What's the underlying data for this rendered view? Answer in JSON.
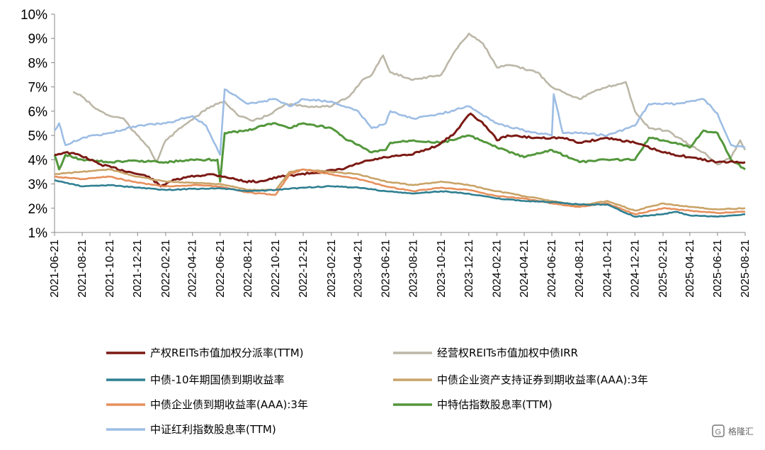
{
  "chart_data": {
    "type": "line",
    "y_unit": "%",
    "ylim": [
      1,
      10
    ],
    "yticks": [
      "10%",
      "9%",
      "8%",
      "7%",
      "6%",
      "5%",
      "4%",
      "3%",
      "2%",
      "1%"
    ],
    "x_range": [
      "2021-06-21",
      "2025-08-21"
    ],
    "xticks": [
      "2021-06-21",
      "2021-08-21",
      "2021-10-21",
      "2021-12-21",
      "2022-02-21",
      "2022-04-21",
      "2022-06-21",
      "2022-08-21",
      "2022-10-21",
      "2022-12-21",
      "2023-02-21",
      "2023-04-21",
      "2023-06-21",
      "2023-08-21",
      "2023-10-21",
      "2023-12-21",
      "2024-02-21",
      "2024-04-21",
      "2024-06-21",
      "2024-08-21",
      "2024-10-21",
      "2024-12-21",
      "2025-02-21",
      "2025-04-21",
      "2025-06-21",
      "2025-08-21"
    ],
    "grid": false,
    "legend_position": "bottom",
    "series": [
      {
        "name": "产权REITs市值加权分派率(TTM)",
        "color": "#7b1a14",
        "points": [
          [
            "2021-06-21",
            4.2
          ],
          [
            "2021-07-15",
            4.3
          ],
          [
            "2021-08-15",
            4.2
          ],
          [
            "2021-10-01",
            3.8
          ],
          [
            "2021-12-01",
            3.5
          ],
          [
            "2022-01-15",
            3.3
          ],
          [
            "2022-02-10",
            2.9
          ],
          [
            "2022-03-01",
            3.1
          ],
          [
            "2022-04-15",
            3.3
          ],
          [
            "2022-06-01",
            3.4
          ],
          [
            "2022-07-01",
            3.3
          ],
          [
            "2022-08-15",
            3.1
          ],
          [
            "2022-09-15",
            3.1
          ],
          [
            "2022-11-01",
            3.3
          ],
          [
            "2022-12-15",
            3.4
          ],
          [
            "2023-02-01",
            3.5
          ],
          [
            "2023-03-15",
            3.6
          ],
          [
            "2023-05-01",
            3.9
          ],
          [
            "2023-06-21",
            4.1
          ],
          [
            "2023-08-15",
            4.2
          ],
          [
            "2023-10-15",
            4.6
          ],
          [
            "2023-11-20",
            5.1
          ],
          [
            "2023-12-10",
            5.6
          ],
          [
            "2023-12-25",
            5.9
          ],
          [
            "2024-01-15",
            5.6
          ],
          [
            "2024-02-10",
            5.1
          ],
          [
            "2024-02-21",
            4.8
          ],
          [
            "2024-03-15",
            5.0
          ],
          [
            "2024-05-15",
            4.9
          ],
          [
            "2024-07-15",
            4.9
          ],
          [
            "2024-08-21",
            4.7
          ],
          [
            "2024-10-21",
            4.9
          ],
          [
            "2024-12-21",
            4.7
          ],
          [
            "2025-02-21",
            4.3
          ],
          [
            "2025-04-21",
            4.1
          ],
          [
            "2025-06-21",
            3.9
          ],
          [
            "2025-08-21",
            3.9
          ]
        ]
      },
      {
        "name": "经营权REITs市值加权中债IRR",
        "color": "#bcb7a7",
        "points": [
          [
            "2021-08-01",
            6.8
          ],
          [
            "2021-08-21",
            6.6
          ],
          [
            "2021-09-20",
            6.1
          ],
          [
            "2021-10-21",
            5.8
          ],
          [
            "2021-11-20",
            5.7
          ],
          [
            "2021-12-10",
            5.2
          ],
          [
            "2022-01-15",
            4.5
          ],
          [
            "2022-02-01",
            3.9
          ],
          [
            "2022-02-21",
            4.8
          ],
          [
            "2022-04-01",
            5.4
          ],
          [
            "2022-05-01",
            5.8
          ],
          [
            "2022-06-01",
            6.2
          ],
          [
            "2022-07-01",
            6.4
          ],
          [
            "2022-08-01",
            5.8
          ],
          [
            "2022-09-01",
            5.6
          ],
          [
            "2022-10-01",
            5.8
          ],
          [
            "2022-11-15",
            6.3
          ],
          [
            "2022-12-21",
            6.2
          ],
          [
            "2023-02-21",
            6.2
          ],
          [
            "2023-04-01",
            6.6
          ],
          [
            "2023-05-01",
            7.3
          ],
          [
            "2023-05-21",
            7.5
          ],
          [
            "2023-06-15",
            8.3
          ],
          [
            "2023-07-01",
            7.6
          ],
          [
            "2023-08-21",
            7.3
          ],
          [
            "2023-10-21",
            7.5
          ],
          [
            "2023-11-21",
            8.5
          ],
          [
            "2023-12-21",
            9.2
          ],
          [
            "2024-01-21",
            8.8
          ],
          [
            "2024-02-21",
            7.8
          ],
          [
            "2024-03-21",
            7.9
          ],
          [
            "2024-05-21",
            7.6
          ],
          [
            "2024-06-21",
            7.0
          ],
          [
            "2024-08-21",
            6.5
          ],
          [
            "2024-09-21",
            6.8
          ],
          [
            "2024-10-21",
            7.0
          ],
          [
            "2024-12-01",
            7.2
          ],
          [
            "2024-12-21",
            6.0
          ],
          [
            "2025-01-21",
            5.3
          ],
          [
            "2025-03-01",
            5.2
          ],
          [
            "2025-04-21",
            4.6
          ],
          [
            "2025-05-21",
            4.3
          ],
          [
            "2025-06-21",
            3.8
          ],
          [
            "2025-07-21",
            4.1
          ],
          [
            "2025-08-10",
            4.8
          ],
          [
            "2025-08-21",
            4.4
          ]
        ]
      },
      {
        "name": "中债-10年期国债到期收益率",
        "color": "#2f7f91",
        "points": [
          [
            "2021-06-21",
            3.15
          ],
          [
            "2021-08-21",
            2.9
          ],
          [
            "2021-10-21",
            2.95
          ],
          [
            "2021-12-21",
            2.85
          ],
          [
            "2022-02-21",
            2.75
          ],
          [
            "2022-04-21",
            2.8
          ],
          [
            "2022-06-21",
            2.82
          ],
          [
            "2022-08-21",
            2.7
          ],
          [
            "2022-10-21",
            2.75
          ],
          [
            "2022-12-21",
            2.85
          ],
          [
            "2023-02-21",
            2.9
          ],
          [
            "2023-04-21",
            2.85
          ],
          [
            "2023-06-21",
            2.7
          ],
          [
            "2023-08-21",
            2.6
          ],
          [
            "2023-10-21",
            2.7
          ],
          [
            "2023-12-21",
            2.6
          ],
          [
            "2024-02-21",
            2.4
          ],
          [
            "2024-04-21",
            2.3
          ],
          [
            "2024-06-21",
            2.25
          ],
          [
            "2024-08-21",
            2.15
          ],
          [
            "2024-10-21",
            2.15
          ],
          [
            "2024-12-21",
            1.65
          ],
          [
            "2025-02-21",
            1.75
          ],
          [
            "2025-03-21",
            1.85
          ],
          [
            "2025-04-21",
            1.7
          ],
          [
            "2025-06-21",
            1.65
          ],
          [
            "2025-08-21",
            1.75
          ]
        ]
      },
      {
        "name": "中债企业资产支持证券到期收益率(AAA):3年",
        "color": "#c9a368",
        "points": [
          [
            "2021-06-21",
            3.4
          ],
          [
            "2021-08-21",
            3.5
          ],
          [
            "2021-10-21",
            3.6
          ],
          [
            "2021-12-21",
            3.3
          ],
          [
            "2022-02-21",
            3.1
          ],
          [
            "2022-04-21",
            3.05
          ],
          [
            "2022-06-21",
            3.0
          ],
          [
            "2022-08-21",
            2.75
          ],
          [
            "2022-10-21",
            2.75
          ],
          [
            "2022-11-21",
            3.5
          ],
          [
            "2022-12-21",
            3.6
          ],
          [
            "2023-02-21",
            3.5
          ],
          [
            "2023-04-21",
            3.4
          ],
          [
            "2023-06-21",
            3.1
          ],
          [
            "2023-08-21",
            2.95
          ],
          [
            "2023-10-21",
            3.1
          ],
          [
            "2023-12-21",
            2.95
          ],
          [
            "2024-02-21",
            2.7
          ],
          [
            "2024-04-21",
            2.5
          ],
          [
            "2024-06-21",
            2.3
          ],
          [
            "2024-08-21",
            2.1
          ],
          [
            "2024-10-21",
            2.3
          ],
          [
            "2024-12-21",
            1.9
          ],
          [
            "2025-02-21",
            2.2
          ],
          [
            "2025-04-21",
            2.05
          ],
          [
            "2025-06-21",
            1.95
          ],
          [
            "2025-08-21",
            2.0
          ]
        ]
      },
      {
        "name": "中债企业债到期收益率(AAA):3年",
        "color": "#e68f5c",
        "points": [
          [
            "2021-06-21",
            3.3
          ],
          [
            "2021-08-21",
            3.2
          ],
          [
            "2021-10-21",
            3.3
          ],
          [
            "2021-12-21",
            3.05
          ],
          [
            "2022-02-21",
            2.9
          ],
          [
            "2022-04-21",
            2.95
          ],
          [
            "2022-06-21",
            2.9
          ],
          [
            "2022-08-21",
            2.65
          ],
          [
            "2022-10-21",
            2.55
          ],
          [
            "2022-11-21",
            3.4
          ],
          [
            "2022-12-21",
            3.6
          ],
          [
            "2023-02-21",
            3.4
          ],
          [
            "2023-04-21",
            3.2
          ],
          [
            "2023-06-21",
            2.9
          ],
          [
            "2023-08-21",
            2.7
          ],
          [
            "2023-10-21",
            2.85
          ],
          [
            "2023-12-21",
            2.75
          ],
          [
            "2024-02-21",
            2.5
          ],
          [
            "2024-04-21",
            2.4
          ],
          [
            "2024-06-21",
            2.2
          ],
          [
            "2024-08-21",
            2.05
          ],
          [
            "2024-10-21",
            2.2
          ],
          [
            "2024-12-21",
            1.75
          ],
          [
            "2025-02-21",
            2.0
          ],
          [
            "2025-04-21",
            1.9
          ],
          [
            "2025-06-21",
            1.8
          ],
          [
            "2025-08-21",
            1.85
          ]
        ]
      },
      {
        "name": "中特估指数股息率(TTM)",
        "color": "#53973c",
        "points": [
          [
            "2021-06-21",
            4.2
          ],
          [
            "2021-07-01",
            3.6
          ],
          [
            "2021-07-15",
            4.2
          ],
          [
            "2021-08-21",
            4.0
          ],
          [
            "2021-10-21",
            3.9
          ],
          [
            "2021-12-21",
            3.95
          ],
          [
            "2022-02-21",
            3.9
          ],
          [
            "2022-04-21",
            4.0
          ],
          [
            "2022-06-15",
            4.0
          ],
          [
            "2022-06-21",
            3.1
          ],
          [
            "2022-07-01",
            5.1
          ],
          [
            "2022-08-21",
            5.2
          ],
          [
            "2022-09-21",
            5.4
          ],
          [
            "2022-10-21",
            5.5
          ],
          [
            "2022-11-21",
            5.3
          ],
          [
            "2022-12-21",
            5.5
          ],
          [
            "2023-02-21",
            5.3
          ],
          [
            "2023-03-21",
            4.9
          ],
          [
            "2023-05-21",
            4.3
          ],
          [
            "2023-06-21",
            4.4
          ],
          [
            "2023-07-01",
            4.7
          ],
          [
            "2023-08-21",
            4.8
          ],
          [
            "2023-10-21",
            4.7
          ],
          [
            "2023-12-21",
            5.0
          ],
          [
            "2024-02-21",
            4.5
          ],
          [
            "2024-04-21",
            4.1
          ],
          [
            "2024-06-21",
            4.4
          ],
          [
            "2024-08-21",
            3.9
          ],
          [
            "2024-10-21",
            4.0
          ],
          [
            "2024-12-21",
            4.0
          ],
          [
            "2025-01-21",
            4.9
          ],
          [
            "2025-03-21",
            4.7
          ],
          [
            "2025-04-21",
            4.5
          ],
          [
            "2025-05-21",
            5.2
          ],
          [
            "2025-06-21",
            5.1
          ],
          [
            "2025-07-21",
            4.0
          ],
          [
            "2025-08-21",
            3.6
          ]
        ]
      },
      {
        "name": "中证红利指数股息率(TTM)",
        "color": "#9dbde4",
        "points": [
          [
            "2021-06-21",
            5.2
          ],
          [
            "2021-07-01",
            5.5
          ],
          [
            "2021-07-15",
            4.6
          ],
          [
            "2021-08-21",
            4.9
          ],
          [
            "2021-10-21",
            5.1
          ],
          [
            "2021-12-21",
            5.4
          ],
          [
            "2022-02-21",
            5.5
          ],
          [
            "2022-04-21",
            5.8
          ],
          [
            "2022-05-21",
            5.4
          ],
          [
            "2022-06-21",
            4.2
          ],
          [
            "2022-07-01",
            6.9
          ],
          [
            "2022-08-21",
            6.3
          ],
          [
            "2022-10-21",
            6.5
          ],
          [
            "2022-11-21",
            6.2
          ],
          [
            "2022-12-21",
            6.5
          ],
          [
            "2023-02-21",
            6.4
          ],
          [
            "2023-04-21",
            6.0
          ],
          [
            "2023-05-21",
            5.3
          ],
          [
            "2023-06-21",
            5.5
          ],
          [
            "2023-07-01",
            6.0
          ],
          [
            "2023-08-21",
            5.7
          ],
          [
            "2023-10-21",
            5.9
          ],
          [
            "2023-12-21",
            6.2
          ],
          [
            "2024-02-21",
            5.5
          ],
          [
            "2024-04-21",
            5.2
          ],
          [
            "2024-06-21",
            5.0
          ],
          [
            "2024-06-25",
            6.7
          ],
          [
            "2024-07-15",
            5.1
          ],
          [
            "2024-08-21",
            5.1
          ],
          [
            "2024-10-21",
            5.0
          ],
          [
            "2024-12-21",
            5.4
          ],
          [
            "2025-01-21",
            6.3
          ],
          [
            "2025-03-21",
            6.3
          ],
          [
            "2025-05-21",
            6.5
          ],
          [
            "2025-06-21",
            5.9
          ],
          [
            "2025-07-21",
            4.6
          ],
          [
            "2025-08-21",
            4.5
          ]
        ]
      }
    ]
  },
  "watermark": {
    "icon": "watermark-logo-icon",
    "text": "格隆汇"
  }
}
